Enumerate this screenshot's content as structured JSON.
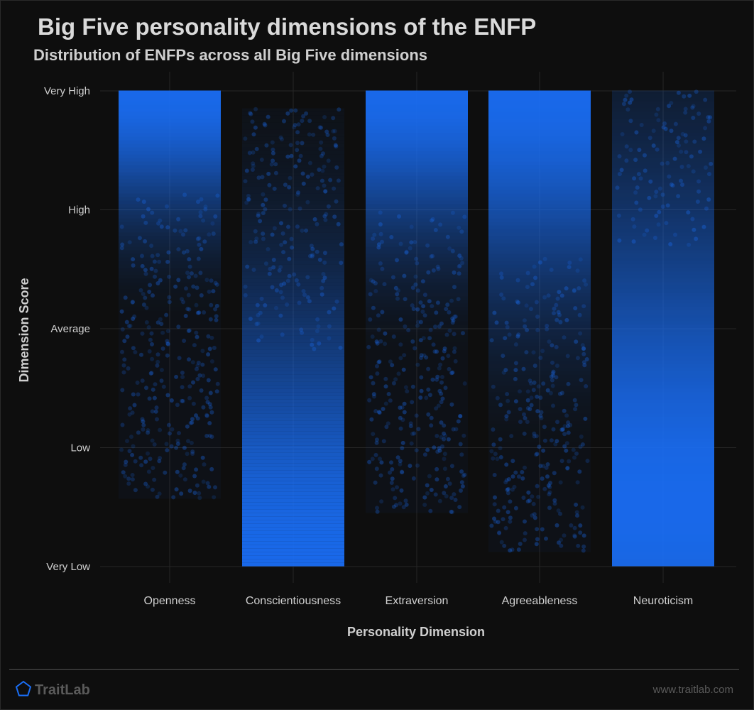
{
  "header": {
    "title": "Big Five personality dimensions of the ENFP",
    "subtitle": "Distribution of ENFPs across all Big Five dimensions"
  },
  "footer": {
    "brand": "TraitLab",
    "site": "www.traitlab.com",
    "brand_icon": "pentagon-logo-icon"
  },
  "colors": {
    "background": "#0e0e0e",
    "point": "#1a6ef5",
    "grid": "#262626",
    "text": "#d0d0d0"
  },
  "chart_data": {
    "type": "scatter",
    "description_type": "jittered strip plot",
    "xlabel": "Personality Dimension",
    "ylabel": "Dimension Score",
    "categories": [
      "Openness",
      "Conscientiousness",
      "Extraversion",
      "Agreeableness",
      "Neuroticism"
    ],
    "y_ticks": [
      "Very Low",
      "Low",
      "Average",
      "High",
      "Very High"
    ],
    "ylim": [
      1,
      5
    ],
    "grid": true,
    "legend": "none",
    "series": [
      {
        "category": "Openness",
        "min": 1.55,
        "max": 5.0,
        "peak": 5.0,
        "spread": 1.2
      },
      {
        "category": "Conscientiousness",
        "min": 1.0,
        "max": 4.85,
        "peak": 1.0,
        "spread": 2.5
      },
      {
        "category": "Extraversion",
        "min": 1.45,
        "max": 5.0,
        "peak": 5.0,
        "spread": 1.4
      },
      {
        "category": "Agreeableness",
        "min": 1.1,
        "max": 5.0,
        "peak": 5.0,
        "spread": 1.9
      },
      {
        "category": "Neuroticism",
        "min": 1.0,
        "max": 5.0,
        "peak": 1.5,
        "spread": 3.0
      }
    ]
  }
}
